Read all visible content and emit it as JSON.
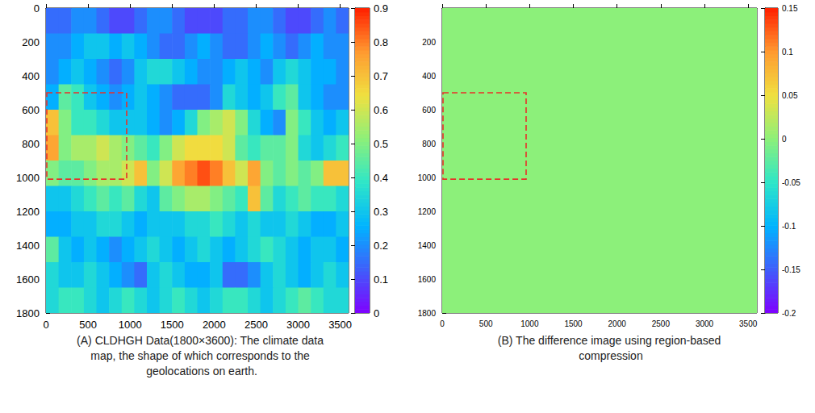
{
  "chart_data": [
    {
      "type": "heatmap",
      "caption": "(A) CLDHGH Data(1800×3600): The climate data map, the shape of which corresponds to the geolocations on earth.",
      "xlim": [
        0,
        3600
      ],
      "xticks": [
        0,
        500,
        1000,
        1500,
        2000,
        2500,
        3000,
        3500
      ],
      "ylim": [
        0,
        1800
      ],
      "yticks": [
        0,
        200,
        400,
        600,
        800,
        1000,
        1200,
        1400,
        1600,
        1800
      ],
      "x_bins": [
        0,
        150,
        300,
        450,
        600,
        750,
        900,
        1050,
        1200,
        1350,
        1500,
        1650,
        1800,
        1950,
        2100,
        2250,
        2400,
        2550,
        2700,
        2850,
        3000,
        3150,
        3300,
        3450,
        3600
      ],
      "y_bins": [
        0,
        150,
        300,
        450,
        600,
        750,
        900,
        1050,
        1200,
        1350,
        1500,
        1650,
        1800
      ],
      "cells": [
        [
          0.15,
          0.15,
          0.2,
          0.2,
          0.15,
          0.1,
          0.1,
          0.15,
          0.2,
          0.2,
          0.15,
          0.1,
          0.1,
          0.1,
          0.15,
          0.15,
          0.2,
          0.2,
          0.15,
          0.1,
          0.1,
          0.15,
          0.2,
          0.15
        ],
        [
          0.2,
          0.2,
          0.25,
          0.3,
          0.3,
          0.25,
          0.3,
          0.25,
          0.2,
          0.15,
          0.15,
          0.2,
          0.25,
          0.2,
          0.15,
          0.15,
          0.2,
          0.25,
          0.2,
          0.15,
          0.2,
          0.25,
          0.2,
          0.2
        ],
        [
          0.2,
          0.25,
          0.3,
          0.25,
          0.2,
          0.15,
          0.2,
          0.3,
          0.35,
          0.35,
          0.3,
          0.25,
          0.2,
          0.2,
          0.25,
          0.3,
          0.25,
          0.2,
          0.3,
          0.35,
          0.3,
          0.25,
          0.25,
          0.2
        ],
        [
          0.25,
          0.45,
          0.4,
          0.3,
          0.25,
          0.2,
          0.25,
          0.3,
          0.25,
          0.2,
          0.15,
          0.15,
          0.15,
          0.2,
          0.35,
          0.3,
          0.25,
          0.3,
          0.4,
          0.45,
          0.3,
          0.25,
          0.2,
          0.2
        ],
        [
          0.7,
          0.5,
          0.4,
          0.4,
          0.35,
          0.3,
          0.3,
          0.3,
          0.25,
          0.2,
          0.25,
          0.35,
          0.5,
          0.55,
          0.6,
          0.5,
          0.35,
          0.25,
          0.2,
          0.5,
          0.4,
          0.3,
          0.25,
          0.3
        ],
        [
          0.75,
          0.5,
          0.55,
          0.55,
          0.6,
          0.55,
          0.5,
          0.45,
          0.4,
          0.5,
          0.6,
          0.65,
          0.65,
          0.65,
          0.6,
          0.45,
          0.4,
          0.45,
          0.45,
          0.5,
          0.35,
          0.3,
          0.35,
          0.4
        ],
        [
          0.5,
          0.45,
          0.45,
          0.5,
          0.55,
          0.55,
          0.6,
          0.7,
          0.5,
          0.6,
          0.75,
          0.8,
          0.85,
          0.8,
          0.7,
          0.6,
          0.75,
          0.5,
          0.45,
          0.5,
          0.45,
          0.5,
          0.7,
          0.7
        ],
        [
          0.3,
          0.3,
          0.35,
          0.4,
          0.45,
          0.4,
          0.45,
          0.35,
          0.3,
          0.45,
          0.5,
          0.55,
          0.55,
          0.5,
          0.45,
          0.4,
          0.7,
          0.45,
          0.35,
          0.4,
          0.45,
          0.4,
          0.4,
          0.35
        ],
        [
          0.25,
          0.25,
          0.3,
          0.3,
          0.35,
          0.35,
          0.3,
          0.25,
          0.3,
          0.3,
          0.3,
          0.35,
          0.35,
          0.4,
          0.35,
          0.3,
          0.35,
          0.3,
          0.3,
          0.35,
          0.3,
          0.25,
          0.25,
          0.3
        ],
        [
          0.45,
          0.3,
          0.25,
          0.3,
          0.25,
          0.2,
          0.25,
          0.3,
          0.35,
          0.3,
          0.25,
          0.3,
          0.35,
          0.3,
          0.25,
          0.3,
          0.35,
          0.4,
          0.35,
          0.3,
          0.25,
          0.3,
          0.3,
          0.25
        ],
        [
          0.35,
          0.3,
          0.3,
          0.35,
          0.3,
          0.25,
          0.2,
          0.15,
          0.3,
          0.35,
          0.3,
          0.25,
          0.25,
          0.3,
          0.15,
          0.15,
          0.2,
          0.3,
          0.35,
          0.3,
          0.25,
          0.3,
          0.35,
          0.3
        ],
        [
          0.35,
          0.4,
          0.4,
          0.35,
          0.3,
          0.35,
          0.4,
          0.35,
          0.3,
          0.35,
          0.4,
          0.35,
          0.3,
          0.35,
          0.4,
          0.4,
          0.35,
          0.3,
          0.35,
          0.4,
          0.45,
          0.4,
          0.35,
          0.35
        ]
      ],
      "colorbar": {
        "range": [
          0,
          0.9
        ],
        "ticks": [
          0,
          0.1,
          0.2,
          0.3,
          0.4,
          0.5,
          0.6,
          0.7,
          0.8,
          0.9
        ]
      },
      "region": {
        "x": [
          0,
          960
        ],
        "y": [
          500,
          1010
        ]
      },
      "grid": false
    },
    {
      "type": "heatmap",
      "caption": "(B) The difference image using region-based compression",
      "xlim": [
        0,
        3600
      ],
      "xticks": [
        0,
        500,
        1000,
        1500,
        2000,
        2500,
        3000,
        3500
      ],
      "ylim": [
        0,
        1800
      ],
      "yticks": [
        200,
        400,
        600,
        800,
        1000,
        1200,
        1400,
        1600,
        1800
      ],
      "x_bins": [
        0,
        3600
      ],
      "y_bins": [
        0,
        1800
      ],
      "cells": [
        [
          0
        ]
      ],
      "colorbar": {
        "range": [
          -0.2,
          0.15
        ],
        "ticks": [
          -0.2,
          -0.15,
          -0.1,
          -0.05,
          0,
          0.05,
          0.1,
          0.15
        ]
      },
      "region": {
        "x": [
          0,
          960
        ],
        "y": [
          500,
          1010
        ]
      },
      "grid": false
    }
  ]
}
